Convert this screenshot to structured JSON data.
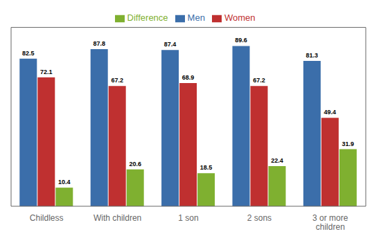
{
  "chart_data": {
    "type": "bar",
    "categories": [
      "Childless",
      "With children",
      "1 son",
      "2 sons",
      "3 or more\nchildren"
    ],
    "series": [
      {
        "name": "Men",
        "color": "#3B6EAA",
        "values": [
          82.5,
          87.8,
          87.4,
          89.6,
          81.3
        ]
      },
      {
        "name": "Women",
        "color": "#BF3030",
        "values": [
          72.1,
          67.2,
          68.9,
          67.2,
          49.4
        ]
      },
      {
        "name": "Difference",
        "color": "#7FB030",
        "values": [
          10.4,
          20.6,
          18.5,
          22.4,
          31.9
        ]
      }
    ],
    "ylim": [
      0,
      100
    ],
    "grid": false,
    "legend": "top",
    "data_labels": true,
    "tick_labels": "x"
  }
}
